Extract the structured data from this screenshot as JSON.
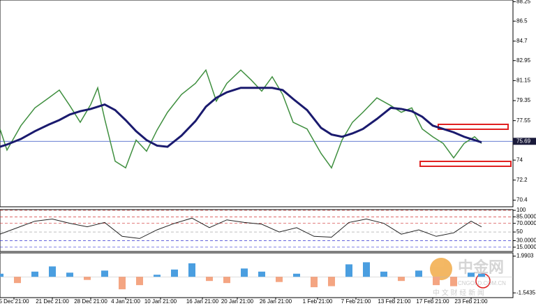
{
  "chart_data": [
    {
      "type": "line",
      "x": [
        0,
        2,
        6,
        10,
        14,
        17,
        20,
        23,
        26,
        28,
        30,
        33,
        36,
        39,
        42,
        45,
        48,
        52,
        56,
        59,
        62,
        65,
        69,
        72,
        75,
        78,
        81,
        84,
        88,
        92,
        95,
        98,
        101,
        104,
        108,
        112,
        115,
        118,
        121,
        124,
        127,
        130,
        133,
        136,
        138
      ],
      "series": [
        {
          "name": "Price",
          "color": "#3f8f3f",
          "width": 1.5,
          "values": [
            76.8,
            74.9,
            77.1,
            78.7,
            79.6,
            80.3,
            78.9,
            77.4,
            79.0,
            80.5,
            77.7,
            73.9,
            73.3,
            75.8,
            74.8,
            76.7,
            78.3,
            79.9,
            80.9,
            82.1,
            79.3,
            80.9,
            82.1,
            81.2,
            80.2,
            81.5,
            79.9,
            77.4,
            76.8,
            74.6,
            73.3,
            75.8,
            77.4,
            78.3,
            79.6,
            78.9,
            78.3,
            78.7,
            76.8,
            76.1,
            75.5,
            74.2,
            75.5,
            76.1,
            75.5
          ]
        },
        {
          "name": "MA",
          "color": "#1a1a6e",
          "width": 3,
          "values": [
            75.2,
            75.4,
            75.9,
            76.6,
            77.2,
            77.6,
            78.1,
            78.4,
            78.6,
            78.8,
            79.0,
            78.5,
            77.6,
            76.6,
            75.8,
            75.3,
            75.2,
            76.2,
            77.5,
            78.8,
            79.6,
            80.1,
            80.5,
            80.5,
            80.5,
            80.5,
            80.3,
            79.5,
            78.5,
            76.9,
            76.3,
            76.1,
            76.4,
            76.8,
            77.7,
            78.7,
            78.6,
            78.4,
            77.9,
            77.1,
            76.8,
            76.5,
            76.1,
            75.8,
            75.6
          ]
        }
      ],
      "xlim": [
        0,
        147
      ],
      "xticks": [
        {
          "value": 4,
          "label": "5 Dec 21:00"
        },
        {
          "value": 15,
          "label": "21 Dec 21:00"
        },
        {
          "value": 26,
          "label": "28 Dec 21:00"
        },
        {
          "value": 36,
          "label": "4 Jan 21:00"
        },
        {
          "value": 46,
          "label": "10 Jan 21:00"
        },
        {
          "value": 58,
          "label": "16 Jan 21:00"
        },
        {
          "value": 68,
          "label": "20 Jan 21:00"
        },
        {
          "value": 79,
          "label": "26 Jan 21:00"
        },
        {
          "value": 91,
          "label": "1 Feb 21:00"
        },
        {
          "value": 102,
          "label": "7 Feb 21:00"
        },
        {
          "value": 113,
          "label": "13 Feb 21:00"
        },
        {
          "value": 124,
          "label": "17 Feb 21:00"
        },
        {
          "value": 135,
          "label": "23 Feb 21:00"
        }
      ],
      "ylim": [
        69.8,
        88.4
      ],
      "yticks": [
        88.25,
        86.5,
        84.7,
        82.95,
        81.15,
        79.35,
        77.55,
        74.0,
        72.2,
        70.4
      ],
      "last_price": 75.69
    },
    {
      "type": "line",
      "x": [
        0,
        5,
        10,
        15,
        20,
        25,
        30,
        35,
        40,
        45,
        50,
        55,
        60,
        65,
        70,
        75,
        80,
        85,
        90,
        95,
        100,
        105,
        110,
        115,
        120,
        125,
        130,
        135,
        138
      ],
      "series": [
        {
          "name": "Oscillator",
          "color": "#222222",
          "width": 1,
          "values": [
            45,
            60,
            75,
            80,
            70,
            62,
            72,
            40,
            35,
            55,
            70,
            82,
            60,
            78,
            72,
            68,
            50,
            60,
            40,
            38,
            72,
            80,
            70,
            45,
            55,
            40,
            48,
            75,
            62
          ]
        }
      ],
      "xlim": [
        0,
        147
      ],
      "ylim": [
        5,
        101.7
      ],
      "yticks": [
        100,
        {
          "value": 85,
          "label": "85.0000"
        },
        {
          "value": 70,
          "label": "70.0000"
        },
        50,
        {
          "value": 30,
          "label": "30.0000"
        },
        {
          "value": 15,
          "label": "15.0000"
        }
      ]
    },
    {
      "type": "bar",
      "x": [
        0,
        5,
        10,
        15,
        20,
        25,
        30,
        35,
        40,
        45,
        50,
        55,
        60,
        65,
        70,
        75,
        80,
        85,
        90,
        95,
        100,
        105,
        110,
        115,
        120,
        125,
        130,
        135,
        138
      ],
      "series": [
        {
          "name": "MACD",
          "color": "#4a9ee0",
          "neg_color": "#f4a582",
          "values": [
            0.3,
            -0.6,
            0.5,
            1.0,
            0.4,
            -0.3,
            0.6,
            -1.2,
            -0.8,
            0.2,
            0.7,
            1.3,
            -0.4,
            -0.6,
            0.8,
            0.5,
            -0.5,
            0.3,
            -1.0,
            -0.9,
            1.2,
            1.4,
            0.5,
            -0.4,
            0.6,
            -0.8,
            -0.9,
            0.4,
            0.3
          ]
        }
      ],
      "xlim": [
        0,
        147
      ],
      "ylim": [
        -2.0,
        2.3
      ],
      "yticks": [
        1.9903,
        -1.5435
      ]
    }
  ],
  "watermark": {
    "logo": "中金网",
    "site": "CNGOLD.COM.CN",
    "tagline": "中 文 财 经 新 闻"
  }
}
